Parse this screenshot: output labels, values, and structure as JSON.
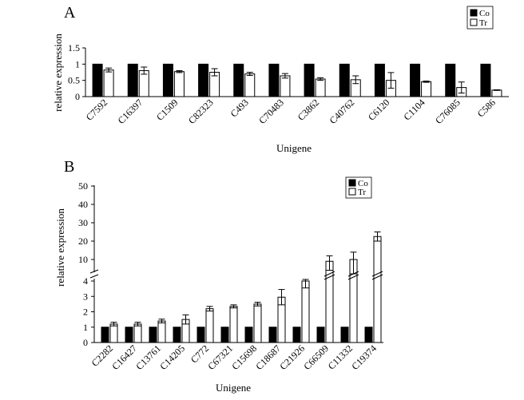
{
  "chart_data": [
    {
      "panel": "A",
      "type": "bar",
      "xlabel": "Unigene",
      "ylabel": "relative expression",
      "ylim": [
        0,
        1.5
      ],
      "yticks": [
        "0",
        "0.5",
        "1",
        "1.5"
      ],
      "legend": {
        "placement": "top-right"
      },
      "categories": [
        "C7592",
        "C16397",
        "C1509",
        "C82323",
        "C493",
        "C70483",
        "C3862",
        "C40762",
        "C6120",
        "C1104",
        "C76085",
        "C586"
      ],
      "series": [
        {
          "name": "Co",
          "color": "#000000",
          "values": [
            1,
            1,
            1,
            1,
            1,
            1,
            1,
            1,
            1,
            1,
            1,
            1
          ]
        },
        {
          "name": "Tr",
          "color": "#ffffff",
          "values": [
            0.82,
            0.8,
            0.77,
            0.75,
            0.7,
            0.64,
            0.54,
            0.52,
            0.5,
            0.46,
            0.28,
            0.2
          ],
          "errors": [
            0.06,
            0.11,
            0.03,
            0.11,
            0.05,
            0.07,
            0.04,
            0.12,
            0.24,
            0.02,
            0.17,
            0.01
          ]
        }
      ]
    },
    {
      "panel": "B",
      "type": "bar",
      "xlabel": "Unigene",
      "ylabel": "relative expression",
      "axis_break": {
        "lower_range": [
          0,
          4
        ],
        "upper_range": [
          10,
          50
        ]
      },
      "yticks_lower": [
        "0",
        "1",
        "2",
        "3",
        "4"
      ],
      "yticks_upper": [
        "10",
        "20",
        "30",
        "40",
        "50"
      ],
      "legend": {
        "placement": "top-right"
      },
      "categories": [
        "C2282",
        "C16427",
        "C13761",
        "C14205",
        "C772",
        "C67321",
        "C15698",
        "C18687",
        "C21926",
        "C66509",
        "C11332",
        "C19374"
      ],
      "series": [
        {
          "name": "Co",
          "color": "#000000",
          "values": [
            1,
            1,
            1,
            1,
            1,
            1,
            1,
            1,
            1,
            1,
            1,
            1
          ]
        },
        {
          "name": "Tr",
          "color": "#ffffff",
          "values": [
            1.2,
            1.2,
            1.4,
            1.5,
            2.2,
            2.35,
            2.5,
            2.95,
            4.0,
            9.5,
            10.0,
            22.5
          ],
          "errors": [
            0.12,
            0.12,
            0.12,
            0.3,
            0.15,
            0.1,
            0.12,
            0.5,
            0.45,
            2.5,
            4.0,
            2.5
          ]
        }
      ]
    }
  ]
}
